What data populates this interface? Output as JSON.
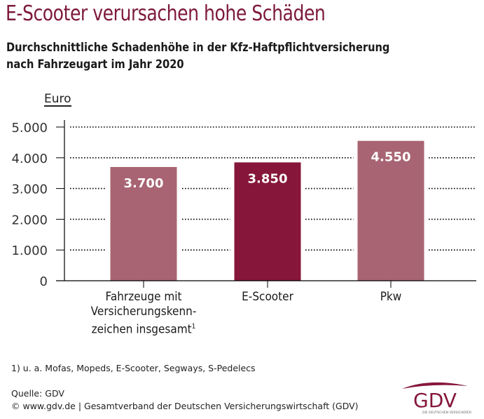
{
  "header": {
    "title": "E-Scooter verursachen hohe Schäden",
    "subtitle_line1": "Durchschnittliche Schadenhöhe in der Kfz-Haftpflichtversicherung",
    "subtitle_line2": "nach Fahrzeugart im Jahr 2020"
  },
  "chart_data": {
    "type": "bar",
    "title": "E-Scooter verursachen hohe Schäden",
    "subtitle": "Durchschnittliche Schadenhöhe in der Kfz-Haftpflichtversicherung nach Fahrzeugart im Jahr 2020",
    "ylabel": "Euro",
    "xlabel": "",
    "ylim": [
      0,
      5000
    ],
    "yticks": [
      0,
      1000,
      2000,
      3000,
      4000,
      5000
    ],
    "ytick_labels": [
      "0",
      "1.000",
      "2.000",
      "3.000",
      "4.000",
      "5.000"
    ],
    "grid": true,
    "categories": [
      "Fahrzeuge mit Versicherungskennzeichen insgesamt¹",
      "E-Scooter",
      "Pkw"
    ],
    "category_lines": [
      [
        "Fahrzeuge mit",
        "Versicherungskenn-",
        "zeichen insgesamt"
      ],
      [
        "E-Scooter"
      ],
      [
        "Pkw"
      ]
    ],
    "footnote_marker": "1",
    "values": [
      3700,
      3850,
      4550
    ],
    "value_labels": [
      "3.700",
      "3.850",
      "4.550"
    ],
    "colors": [
      "#a86472",
      "#86173a",
      "#a86472"
    ]
  },
  "footer": {
    "footnote": "1) u. a. Mofas, Mopeds, E-Scooter, Segways, S-Pedelecs",
    "source": "Quelle: GDV",
    "copyright": "© www.gdv.de | Gesamtverband der Deutschen Versicherungswirtschaft (GDV)"
  },
  "logo": {
    "text": "GDV",
    "tagline": "DIE DEUTSCHEN VERSICHERER",
    "color": "#86173a"
  }
}
